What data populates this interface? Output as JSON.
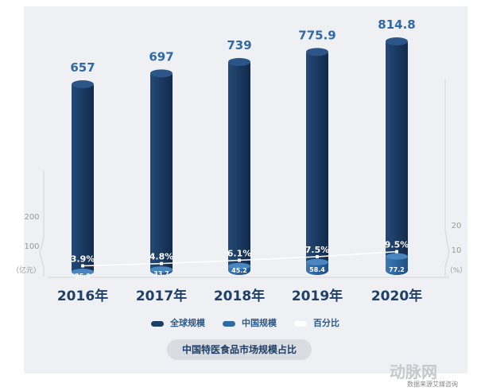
{
  "chart_data": {
    "type": "bar",
    "categories": [
      "2016年",
      "2017年",
      "2018年",
      "2019年",
      "2020年"
    ],
    "series": [
      {
        "name": "全球规模",
        "values": [
          657,
          697,
          739,
          775.9,
          814.8
        ]
      },
      {
        "name": "中国规模",
        "values": [
          25.9,
          33.7,
          45.2,
          58.4,
          77.2
        ]
      },
      {
        "name": "百分比",
        "type": "line",
        "values": [
          3.9,
          4.8,
          6.1,
          7.5,
          9.5
        ],
        "labels": [
          "3.9%",
          "4.8%",
          "6.1%",
          "7.5%",
          "9.5%"
        ]
      }
    ],
    "left_axis": {
      "unit": "（亿元）",
      "ticks": [
        "100",
        "200"
      ]
    },
    "right_axis": {
      "unit": "（%）",
      "ticks": [
        "10",
        "20"
      ]
    },
    "title": "中国特医食品市场规模占比",
    "colors": {
      "global": "#1b3d66",
      "china": "#2f6aa6",
      "percent": "#ffffff"
    }
  },
  "watermark": "动脉网",
  "source": "数据来源艾媒咨询"
}
